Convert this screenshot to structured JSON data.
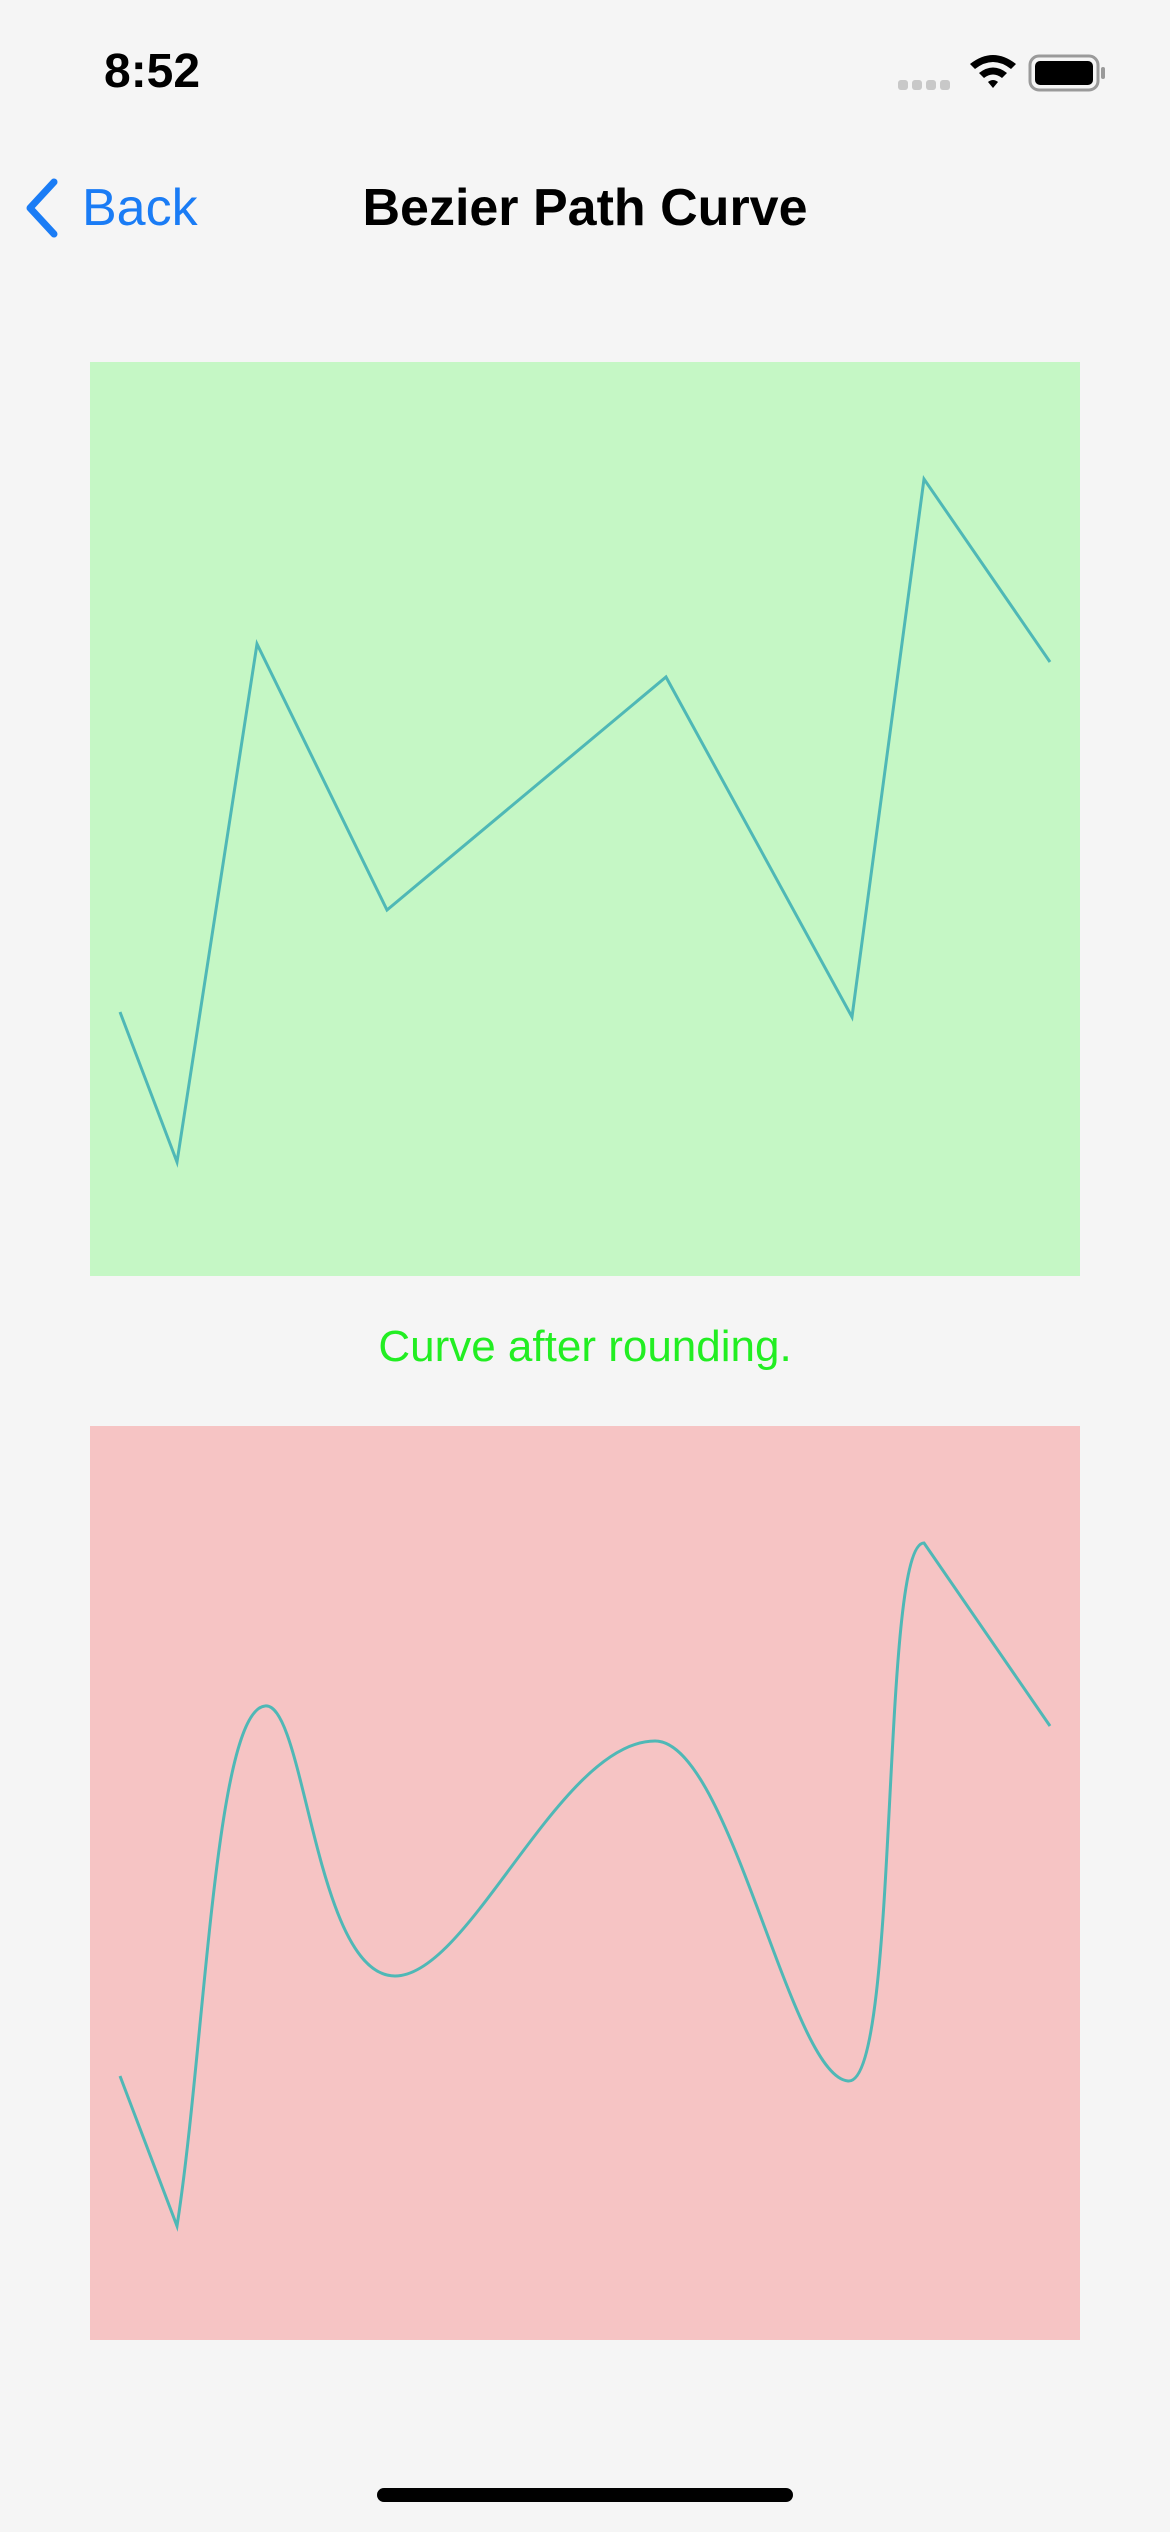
{
  "status_bar": {
    "time": "8:52",
    "icons": [
      "cellular-signal-icon",
      "wifi-icon",
      "battery-icon"
    ]
  },
  "nav": {
    "back_label": "Back",
    "back_icon": "chevron-left-icon",
    "title": "Bezier Path Curve"
  },
  "colors": {
    "accent": "#1a7cf5",
    "top_panel_bg": "#c5f7c5",
    "bottom_panel_bg": "#f6c4c4",
    "curve": "#4fb8b6",
    "caption": "#22ee22"
  },
  "caption": "Curve after rounding."
}
